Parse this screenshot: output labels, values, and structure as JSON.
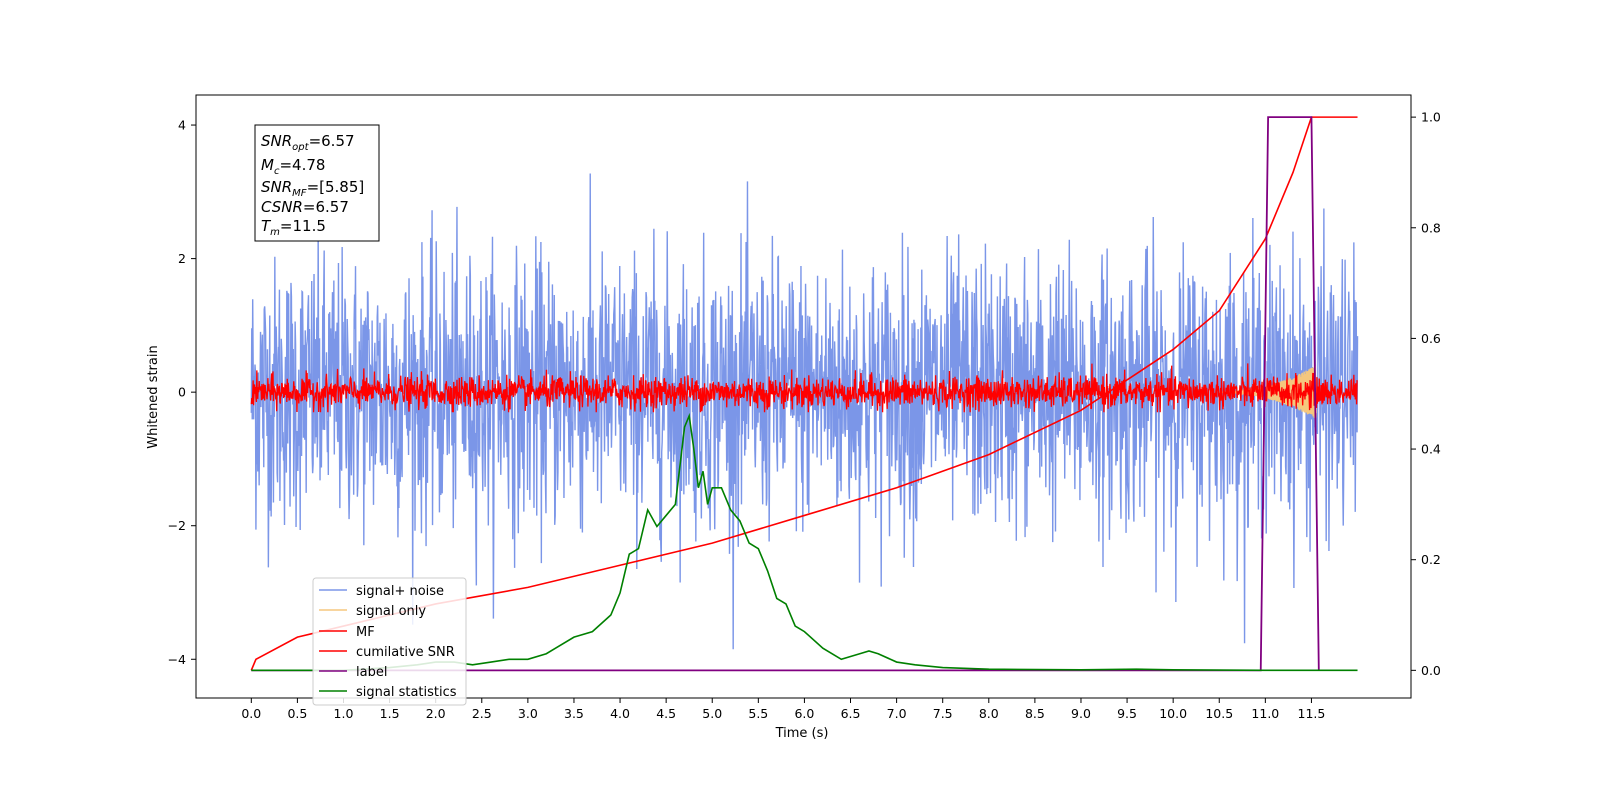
{
  "chart_data": {
    "type": "line",
    "xlabel": "Time (s)",
    "ylabel": "Whitened strain",
    "xlim": [
      -0.6,
      12.58
    ],
    "ylim": [
      -4.58,
      4.45
    ],
    "ylim_right": [
      -0.05,
      1.04
    ],
    "x_ticks": [
      0.0,
      0.5,
      1.0,
      1.5,
      2.0,
      2.5,
      3.0,
      3.5,
      4.0,
      4.5,
      5.0,
      5.5,
      6.0,
      6.5,
      7.0,
      7.5,
      8.0,
      8.5,
      9.0,
      9.5,
      10.0,
      10.5,
      11.0,
      11.5
    ],
    "x_tick_labels": [
      "0.0",
      "0.5",
      "1.0",
      "1.5",
      "2.0",
      "2.5",
      "3.0",
      "3.5",
      "4.0",
      "4.5",
      "5.0",
      "5.5",
      "6.0",
      "6.5",
      "7.0",
      "7.5",
      "8.0",
      "8.5",
      "9.0",
      "9.5",
      "10.0",
      "10.5",
      "11.0",
      "11.5"
    ],
    "y_ticks": [
      4,
      2,
      0,
      -2,
      -4
    ],
    "y_tick_labels": [
      "4",
      "2",
      "0",
      "−2",
      "−4"
    ],
    "y_right_ticks": [
      1.0,
      0.8,
      0.6,
      0.4,
      0.2,
      0.0
    ],
    "y_right_tick_labels": [
      "1.0",
      "0.8",
      "0.6",
      "0.4",
      "0.2",
      "0.0"
    ],
    "grid": false,
    "legend_position": "lower-left",
    "annotation": [
      {
        "base": "SNR",
        "sub": "opt",
        "value": "=6.57"
      },
      {
        "base": "M",
        "sub": "c",
        "value": "=4.78"
      },
      {
        "base": "SNR",
        "sub": "MF",
        "value": "=[5.85]"
      },
      {
        "base": "CSNR",
        "sub": "",
        "value": "=6.57"
      },
      {
        "base": "T",
        "sub": "m",
        "value": "=11.5"
      }
    ],
    "series": [
      {
        "name": "signal+ noise",
        "color": "#7b96e8",
        "axis": "left",
        "kind": "noise",
        "x_range": [
          0.0,
          12.0
        ],
        "mean": 0.0,
        "std": 1.0,
        "peak_max": 4.05,
        "peak_min": -3.85
      },
      {
        "name": "signal only",
        "color": "#f5c77e",
        "axis": "left",
        "kind": "chirp",
        "x_range": [
          10.5,
          11.55
        ],
        "peak_amplitude": 0.4
      },
      {
        "name": "MF",
        "color": "#ff0000",
        "axis": "left",
        "kind": "noise",
        "x_range": [
          0.0,
          12.0
        ],
        "mean": 0.0,
        "std": 0.12,
        "peak_max": 0.95,
        "peak_min": -0.3
      },
      {
        "name": "cumilative SNR",
        "color": "#ff0000",
        "axis": "right",
        "x": [
          0.0,
          0.05,
          0.5,
          1.0,
          2.0,
          3.0,
          4.0,
          5.0,
          6.0,
          7.0,
          8.0,
          9.0,
          10.0,
          10.5,
          11.0,
          11.3,
          11.5,
          12.0
        ],
        "y": [
          0.0,
          0.02,
          0.06,
          0.08,
          0.12,
          0.15,
          0.19,
          0.23,
          0.28,
          0.33,
          0.39,
          0.47,
          0.58,
          0.65,
          0.78,
          0.9,
          1.0,
          1.0
        ]
      },
      {
        "name": "label",
        "color": "#800080",
        "axis": "right",
        "x": [
          0.0,
          10.95,
          11.03,
          11.5,
          11.58
        ],
        "y": [
          0.0,
          0.0,
          1.0,
          1.0,
          0.0
        ]
      },
      {
        "name": "signal statistics",
        "color": "#008000",
        "axis": "right",
        "x": [
          0.0,
          0.5,
          1.0,
          1.5,
          1.8,
          2.0,
          2.2,
          2.4,
          2.6,
          2.8,
          3.0,
          3.2,
          3.3,
          3.5,
          3.7,
          3.9,
          4.0,
          4.1,
          4.2,
          4.3,
          4.4,
          4.5,
          4.6,
          4.7,
          4.75,
          4.8,
          4.85,
          4.9,
          4.95,
          5.0,
          5.1,
          5.2,
          5.3,
          5.4,
          5.5,
          5.6,
          5.7,
          5.8,
          5.9,
          6.0,
          6.2,
          6.4,
          6.6,
          6.7,
          6.8,
          7.0,
          7.2,
          7.5,
          8.0,
          9.0,
          9.6,
          10.0,
          11.0,
          12.0
        ],
        "y": [
          0.0,
          0.0,
          0.0,
          0.005,
          0.01,
          0.015,
          0.015,
          0.01,
          0.015,
          0.02,
          0.02,
          0.03,
          0.04,
          0.06,
          0.07,
          0.1,
          0.14,
          0.21,
          0.22,
          0.29,
          0.26,
          0.28,
          0.3,
          0.44,
          0.46,
          0.4,
          0.33,
          0.36,
          0.3,
          0.33,
          0.33,
          0.29,
          0.27,
          0.23,
          0.22,
          0.18,
          0.13,
          0.12,
          0.08,
          0.07,
          0.04,
          0.02,
          0.03,
          0.035,
          0.03,
          0.015,
          0.01,
          0.005,
          0.002,
          0.001,
          0.002,
          0.001,
          0.0,
          0.0
        ]
      }
    ]
  }
}
